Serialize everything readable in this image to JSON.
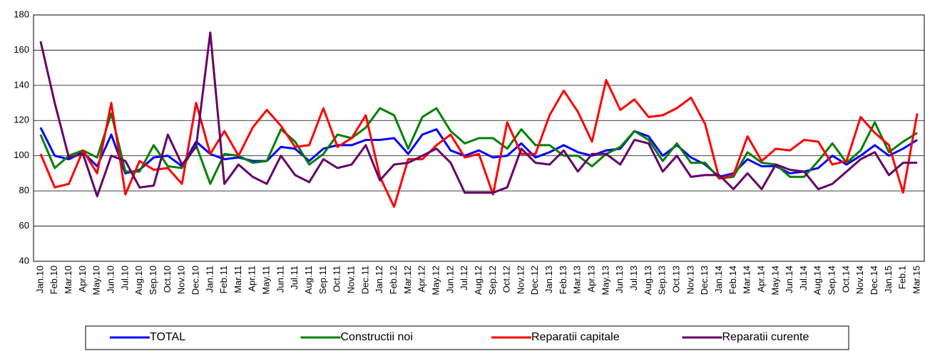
{
  "chart_data": {
    "type": "line",
    "categories": [
      "Jan.10",
      "Feb.10",
      "Mar.10",
      "Apr.10",
      "May.10",
      "Jun.10",
      "Jul.10",
      "Aug.10",
      "Sep.10",
      "Oct.10",
      "Nov.10",
      "Dec.10",
      "Jan.11",
      "Feb.11",
      "Mar.11",
      "Apr.11",
      "May.11",
      "Jun.11",
      "Jul.11",
      "Aug.11",
      "Sep.11",
      "Oct.11",
      "Nov.11",
      "Dec.11",
      "Jan.12",
      "Feb.12",
      "Mar.12",
      "Apr.12",
      "May.12",
      "Jun.12",
      "Jul.12",
      "Aug.12",
      "Sep.12",
      "Oct.12",
      "Nov.12",
      "Dec.12",
      "Jan.13",
      "Feb.13",
      "Mar.13",
      "Apr.13",
      "May.13",
      "Jun.13",
      "Jul.13",
      "Aug.13",
      "Sep.13",
      "Oct.13",
      "Nov.13",
      "Dec.13",
      "Jan.14",
      "Feb.14",
      "Mar.14",
      "Apr.14",
      "May.14",
      "Jun.14",
      "Jul.14",
      "Aug.14",
      "Sep.14",
      "Oct.14",
      "Nov.14",
      "Dec.14",
      "Jan.15",
      "Feb.1",
      "Mar.15"
    ],
    "series": [
      {
        "name": "TOTAL",
        "color": "#0000ff",
        "values": [
          116,
          100,
          98,
          102,
          94,
          112,
          90,
          92,
          99,
          100,
          94,
          108,
          101,
          98,
          99,
          97,
          97,
          105,
          104,
          97,
          104,
          106,
          106,
          109,
          109,
          110,
          101,
          112,
          115,
          103,
          100,
          103,
          99,
          100,
          107,
          99,
          102,
          106,
          102,
          100,
          103,
          104,
          114,
          111,
          100,
          106,
          99,
          95,
          88,
          90,
          98,
          94,
          94,
          90,
          91,
          93,
          100,
          95,
          100,
          106,
          100,
          104,
          109
        ]
      },
      {
        "name": "Constructii noi",
        "color": "#008000",
        "values": [
          112,
          93,
          100,
          103,
          99,
          124,
          91,
          91,
          106,
          94,
          93,
          106,
          84,
          101,
          100,
          96,
          97,
          115,
          108,
          95,
          101,
          112,
          110,
          116,
          127,
          123,
          104,
          122,
          127,
          114,
          107,
          110,
          110,
          104,
          115,
          106,
          106,
          100,
          100,
          94,
          101,
          105,
          114,
          109,
          97,
          107,
          96,
          96,
          87,
          88,
          102,
          96,
          95,
          88,
          88,
          97,
          107,
          96,
          103,
          119,
          102,
          108,
          113
        ]
      },
      {
        "name": "Reparatii capitale",
        "color": "#ff0000",
        "values": [
          101,
          82,
          84,
          103,
          90,
          130,
          78,
          97,
          92,
          93,
          84,
          130,
          101,
          114,
          100,
          116,
          126,
          117,
          105,
          106,
          127,
          105,
          110,
          123,
          88,
          71,
          98,
          98,
          106,
          112,
          99,
          101,
          78,
          119,
          101,
          101,
          123,
          137,
          125,
          108,
          143,
          126,
          132,
          122,
          123,
          127,
          133,
          118,
          87,
          89,
          111,
          97,
          104,
          103,
          109,
          108,
          95,
          97,
          122,
          113,
          106,
          79,
          124
        ]
      },
      {
        "name": "Reparatii curente",
        "color": "#660066",
        "values": [
          165,
          130,
          99,
          101,
          77,
          100,
          97,
          82,
          83,
          112,
          95,
          105,
          170,
          84,
          95,
          88,
          84,
          100,
          89,
          85,
          98,
          93,
          95,
          106,
          86,
          95,
          96,
          100,
          104,
          96,
          79,
          79,
          79,
          82,
          104,
          96,
          95,
          103,
          91,
          101,
          101,
          95,
          109,
          107,
          91,
          100,
          88,
          89,
          89,
          81,
          90,
          81,
          95,
          92,
          91,
          81,
          84,
          91,
          98,
          102,
          89,
          96,
          96
        ]
      }
    ],
    "ylim": [
      40,
      180
    ],
    "yticks": [
      40,
      60,
      80,
      100,
      120,
      140,
      160,
      180
    ],
    "grid": true,
    "legend": "bottom"
  }
}
